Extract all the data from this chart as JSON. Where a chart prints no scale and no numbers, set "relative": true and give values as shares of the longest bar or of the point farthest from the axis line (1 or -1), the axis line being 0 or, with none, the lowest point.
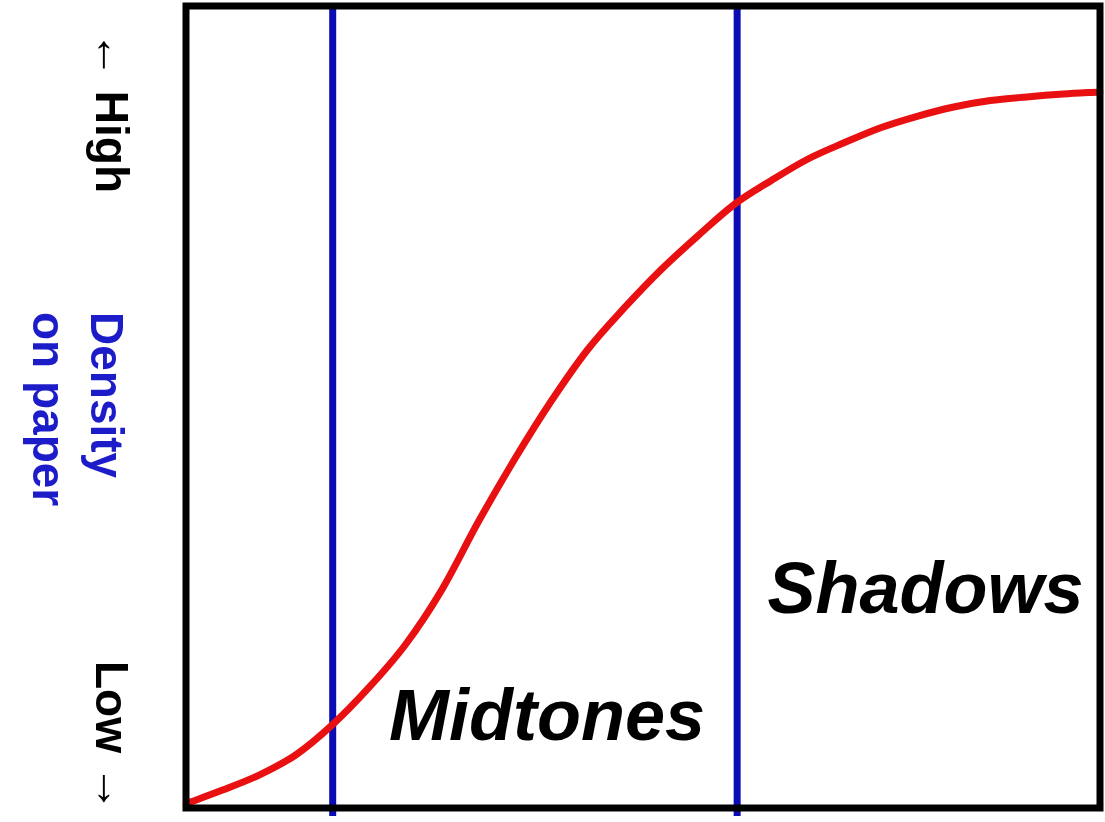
{
  "chart_data": {
    "type": "line",
    "relative": true,
    "marker": "none",
    "ylabel": "Density on paper",
    "annotations": [
      "← High",
      "Low →",
      "Midtones",
      "Shadows"
    ],
    "categories": [
      null,
      null,
      null,
      null,
      null,
      null,
      null,
      null,
      null,
      null,
      null,
      null,
      null,
      null,
      null,
      null,
      null,
      null,
      null,
      null,
      null,
      null,
      null,
      null,
      null,
      null
    ],
    "values": [
      0.006,
      0.025,
      0.046,
      0.074,
      0.116,
      0.168,
      0.228,
      0.305,
      0.4,
      0.488,
      0.569,
      0.641,
      0.699,
      0.752,
      0.799,
      0.843,
      0.876,
      0.906,
      0.929,
      0.95,
      0.966,
      0.979,
      0.988,
      0.993,
      0.997,
      1.0
    ],
    "color": "#e81010"
  }
}
